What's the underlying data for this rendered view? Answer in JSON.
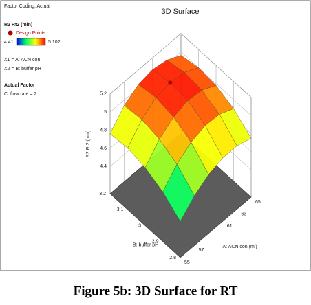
{
  "chart_data": {
    "type": "surface3d",
    "title": "3D Surface",
    "factor_coding": "Factor Coding: Actual",
    "legend_title": "R2 Rt2 (min)",
    "design_points_label": "Design Points",
    "color_range": [
      4.41,
      5.102
    ],
    "x1_label": "X1 = A: ACN con",
    "x2_label": "X2 = B: buffer pH",
    "actual_factor_title": "Actual Factor",
    "actual_factor": "C: flow rate = 2",
    "zlabel": "R2 Rt2 (min)",
    "alabel": "A: ACN con (ml)",
    "blabel": "B: buffer pH",
    "alim": [
      55,
      65
    ],
    "aticks": [
      55,
      57,
      61,
      63,
      65
    ],
    "blim": [
      2.8,
      3.2
    ],
    "bticks": [
      2.8,
      2.9,
      3,
      3.1,
      3.2
    ],
    "zlim": [
      4.1,
      5.2
    ],
    "zticks": [
      4.4,
      4.6,
      4.8,
      5,
      5.2
    ],
    "a": [
      55,
      57,
      59,
      61,
      63,
      65
    ],
    "b": [
      2.8,
      2.9,
      3,
      3.1,
      3.2
    ],
    "z": [
      [
        4.5,
        4.65,
        4.75,
        4.8,
        4.8,
        4.75
      ],
      [
        4.65,
        4.82,
        4.93,
        4.98,
        4.97,
        4.9
      ],
      [
        4.74,
        4.92,
        5.03,
        5.08,
        5.06,
        4.98
      ],
      [
        4.78,
        4.96,
        5.07,
        5.1,
        5.08,
        5
      ],
      [
        4.76,
        4.94,
        5.04,
        5.07,
        5.04,
        4.96
      ]
    ],
    "design_points": [
      {
        "a": 61,
        "b": 3.1,
        "z": 5.1
      }
    ],
    "design_point_color": "#b00000",
    "caption": "Figure 5b: 3D Surface for RT"
  }
}
